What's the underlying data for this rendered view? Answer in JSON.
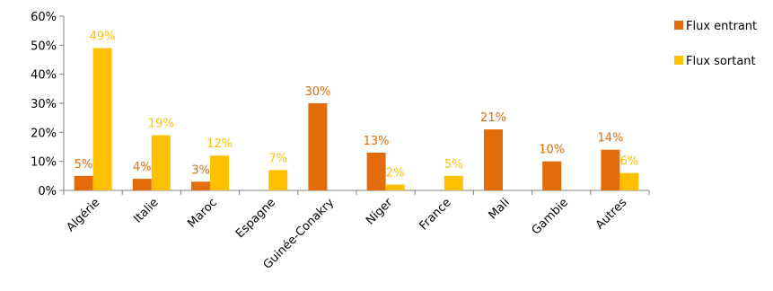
{
  "chart_data": {
    "type": "bar",
    "categories": [
      "Algérie",
      "Italie",
      "Maroc",
      "Espagne",
      "Guinée-Conakry",
      "Niger",
      "France",
      "Mali",
      "Gambie",
      "Autres"
    ],
    "series": [
      {
        "name": "Flux entrant",
        "color": "#E36C0A",
        "values": [
          5,
          4,
          3,
          null,
          30,
          13,
          null,
          21,
          10,
          14
        ],
        "labels": [
          "5%",
          "4%",
          "3%",
          "",
          "30%",
          "13%",
          "",
          "21%",
          "10%",
          "14%"
        ]
      },
      {
        "name": "Flux sortant",
        "color": "#FFC000",
        "values": [
          49,
          19,
          12,
          7,
          null,
          2,
          5,
          null,
          null,
          6
        ],
        "labels": [
          "49%",
          "19%",
          "12%",
          "7%",
          "",
          "2%",
          "5%",
          "",
          "",
          "6%"
        ]
      }
    ],
    "y_ticks": [
      "0%",
      "10%",
      "20%",
      "30%",
      "40%",
      "50%",
      "60%"
    ],
    "ylim": [
      0,
      60
    ],
    "legend_position": "right",
    "grid": false
  }
}
